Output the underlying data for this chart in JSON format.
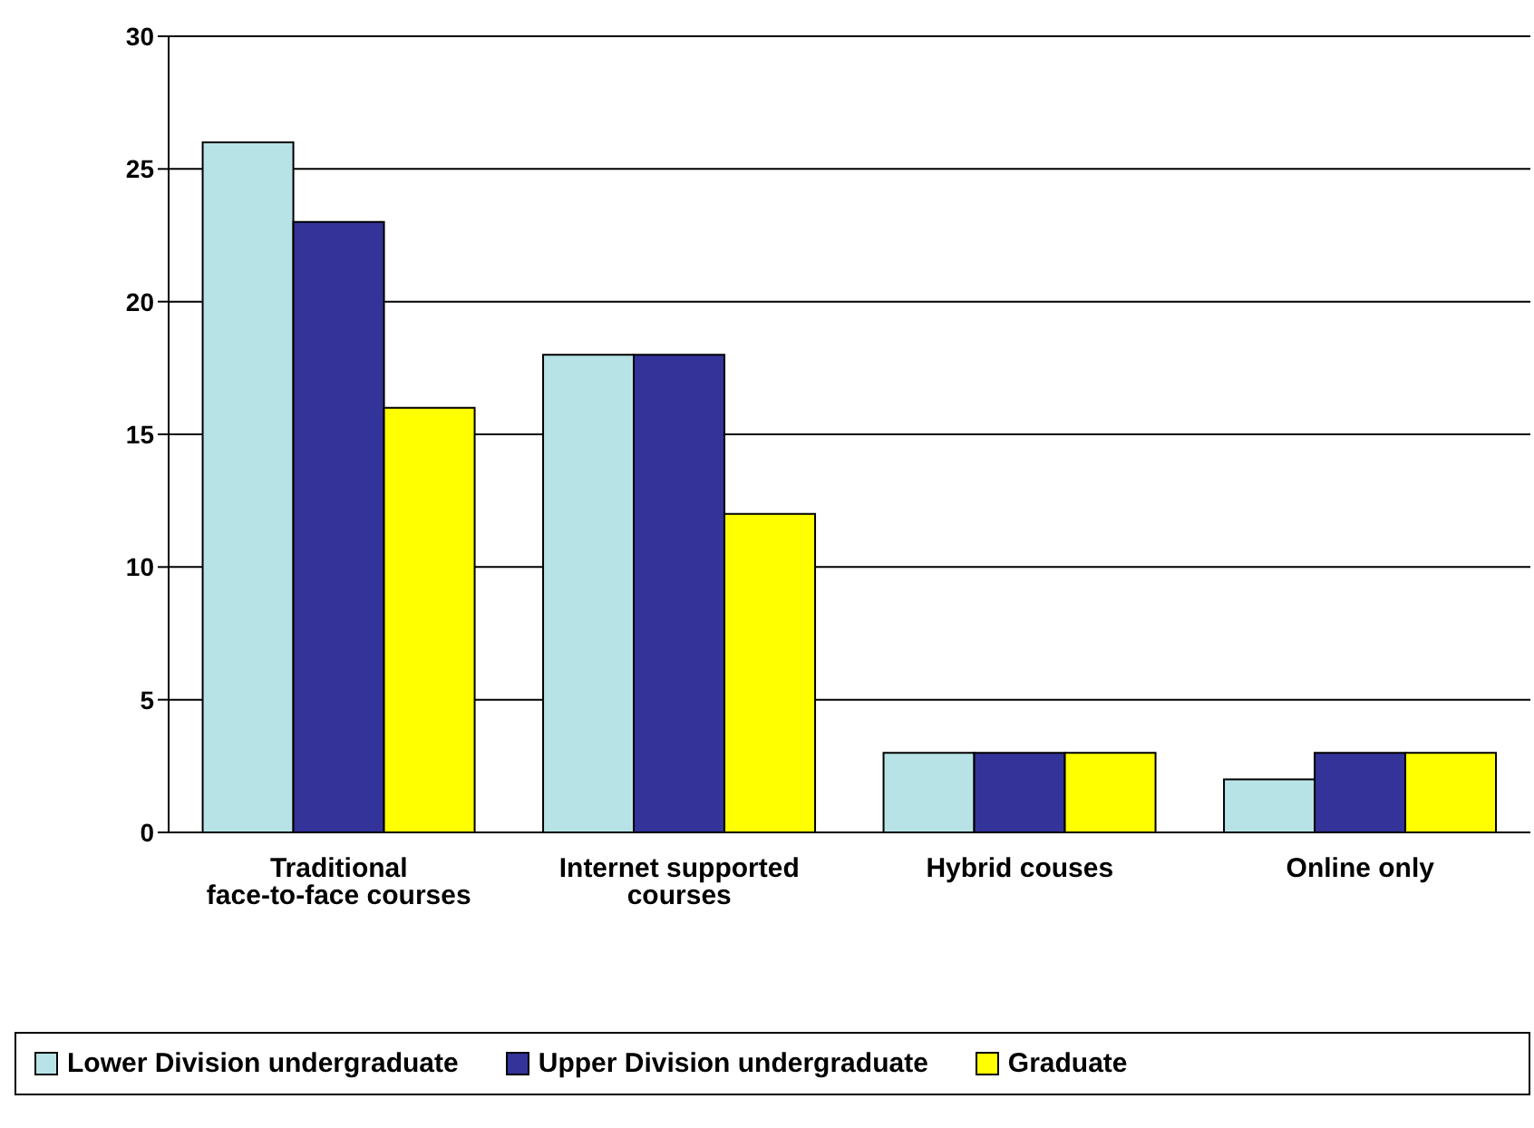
{
  "chart_data": {
    "type": "bar",
    "categories": [
      "Traditional face-to-face courses",
      "Internet supported courses",
      "Hybrid couses",
      "Online only"
    ],
    "series": [
      {
        "name": "Lower Division undergraduate",
        "color": "#b7e3e6",
        "values": [
          26,
          18,
          3,
          2
        ]
      },
      {
        "name": "Upper Division undergraduate",
        "color": "#333399",
        "values": [
          23,
          18,
          3,
          3
        ]
      },
      {
        "name": "Graduate",
        "color": "#ffff00",
        "values": [
          16,
          12,
          3,
          3
        ]
      }
    ],
    "ylim": [
      0,
      30
    ],
    "yticks": [
      0,
      5,
      10,
      15,
      20,
      25,
      30
    ],
    "grid": "y",
    "legend": "bottom"
  }
}
